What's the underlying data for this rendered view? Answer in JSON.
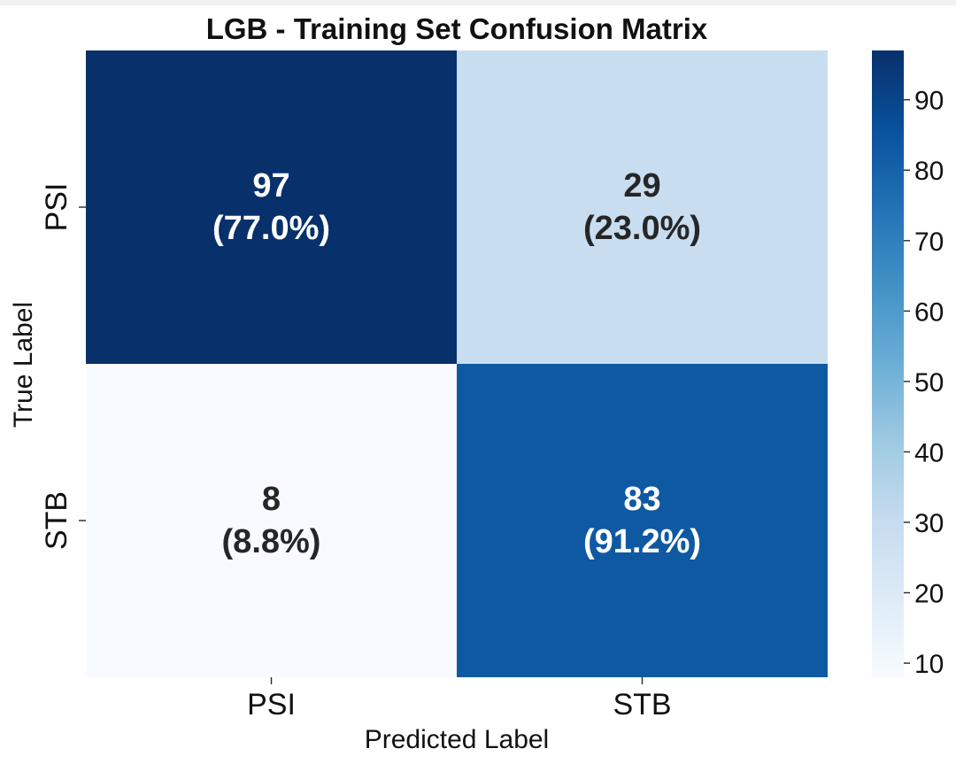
{
  "chart_data": {
    "type": "heatmap",
    "title": "LGB - Training Set Confusion Matrix",
    "xlabel": "Predicted Label",
    "ylabel": "True Label",
    "x_categories": [
      "PSI",
      "STB"
    ],
    "y_categories": [
      "PSI",
      "STB"
    ],
    "values": [
      [
        97,
        29
      ],
      [
        8,
        83
      ]
    ],
    "cell_labels": [
      [
        {
          "count": "97",
          "percent": "(77.0%)"
        },
        {
          "count": "29",
          "percent": "(23.0%)"
        }
      ],
      [
        {
          "count": "8",
          "percent": "(8.8%)"
        },
        {
          "count": "83",
          "percent": "(91.2%)"
        }
      ]
    ],
    "colorbar": {
      "range": [
        8,
        97
      ],
      "ticks": [
        10,
        20,
        30,
        40,
        50,
        60,
        70,
        80,
        90
      ],
      "tick_labels": [
        "10",
        "20",
        "30",
        "40",
        "50",
        "60",
        "70",
        "80",
        "90"
      ],
      "colormap": "Blues",
      "stops": [
        "#f7fbff",
        "#deebf7",
        "#c6dbef",
        "#9ecae1",
        "#6baed6",
        "#4292c6",
        "#2171b5",
        "#08519c",
        "#08306b"
      ]
    },
    "colors": {
      "text_dark": "#262626",
      "text_light": "#ffffff"
    }
  }
}
